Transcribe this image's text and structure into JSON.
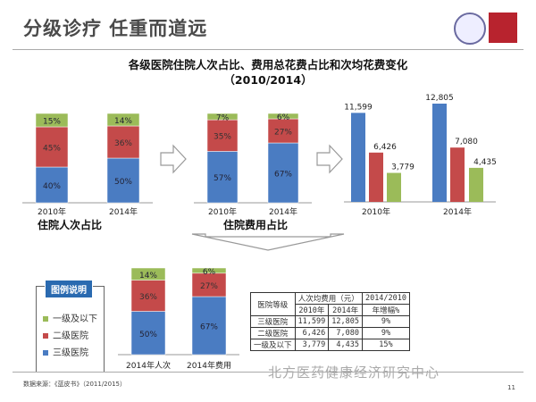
{
  "header": {
    "title": "分级诊疗  任重而道远",
    "subtitle": "各级医院住院人次占比、费用总花费占比和次均花费变化",
    "period": "（2010/2014）"
  },
  "colors": {
    "tertiary": "#4a7cc2",
    "secondary": "#c44a4a",
    "primary": "#9bbb59"
  },
  "chart_data": [
    {
      "type": "bar",
      "stacked": true,
      "title": "住院人次占比",
      "categories": [
        "2010年",
        "2014年"
      ],
      "series": [
        {
          "name": "三级医院",
          "values": [
            40,
            50
          ]
        },
        {
          "name": "二级医院",
          "values": [
            45,
            36
          ]
        },
        {
          "name": "一级及以下",
          "values": [
            15,
            14
          ]
        }
      ]
    },
    {
      "type": "bar",
      "stacked": true,
      "title": "住院费用占比",
      "categories": [
        "2010年",
        "2014年"
      ],
      "series": [
        {
          "name": "三级医院",
          "values": [
            57,
            67
          ]
        },
        {
          "name": "二级医院",
          "values": [
            35,
            27
          ]
        },
        {
          "name": "一级及以下",
          "values": [
            7,
            6
          ]
        }
      ]
    },
    {
      "type": "bar",
      "stacked": false,
      "title": "",
      "categories": [
        "2010年",
        "2014年"
      ],
      "series": [
        {
          "name": "三级医院",
          "values": [
            11599,
            12805
          ]
        },
        {
          "name": "二级医院",
          "values": [
            6426,
            7080
          ]
        },
        {
          "name": "一级及以下",
          "values": [
            3779,
            4435
          ]
        }
      ]
    },
    {
      "type": "bar",
      "stacked": true,
      "title": "",
      "categories": [
        "2014年人次",
        "2014年费用"
      ],
      "series": [
        {
          "name": "三级医院",
          "values": [
            50,
            67
          ]
        },
        {
          "name": "二级医院",
          "values": [
            36,
            27
          ]
        },
        {
          "name": "一级及以下",
          "values": [
            14,
            6
          ]
        }
      ]
    }
  ],
  "legend": {
    "title": "图例说明",
    "items": [
      "一级及以下",
      "二级医院",
      "三级医院"
    ]
  },
  "table": {
    "h_level": "医院等级",
    "h_cost": "人次均费用（元）",
    "h_growth1": "2014/2010",
    "h_growth2": "年增幅%",
    "h_2010": "2010年",
    "h_2014": "2014年",
    "rows": [
      [
        "三级医院",
        "11,599",
        "12,805",
        "9%"
      ],
      [
        "二级医院",
        "6,426",
        "7,080",
        "9%"
      ],
      [
        "一级及以下",
        "3,779",
        "4,435",
        "15%"
      ]
    ]
  },
  "source": "数据来源：《蓝皮书》（2011/2015）",
  "page": "11",
  "watermark": "北方医药健康经济研究中心"
}
